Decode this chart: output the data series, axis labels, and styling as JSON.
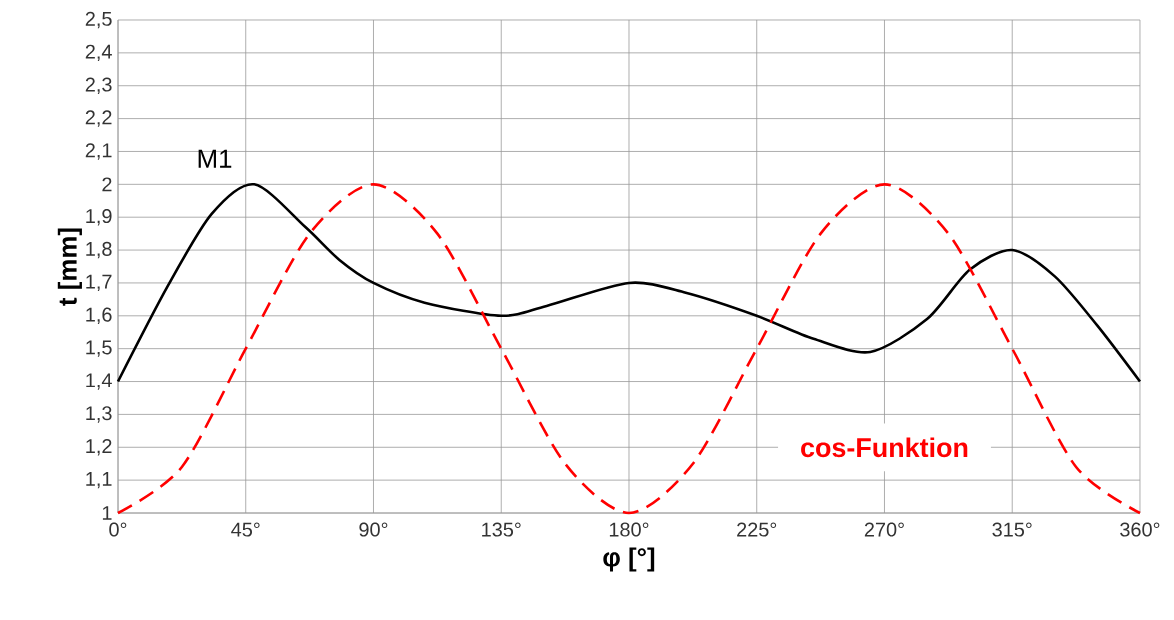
{
  "chart_data": {
    "type": "line",
    "xlabel": "φ [°]",
    "ylabel": "t [mm]",
    "xlim": [
      0,
      360
    ],
    "ylim": [
      1,
      2.5
    ],
    "xticks": [
      {
        "value": 0,
        "label": "0°"
      },
      {
        "value": 45,
        "label": "45°"
      },
      {
        "value": 90,
        "label": "90°"
      },
      {
        "value": 135,
        "label": "135°"
      },
      {
        "value": 180,
        "label": "180°"
      },
      {
        "value": 225,
        "label": "225°"
      },
      {
        "value": 270,
        "label": "270°"
      },
      {
        "value": 315,
        "label": "315°"
      },
      {
        "value": 360,
        "label": "360°"
      }
    ],
    "yticks": [
      1,
      {
        "value": 1.1,
        "label": "1,1"
      },
      {
        "value": 1.2,
        "label": "1,2"
      },
      {
        "value": 1.3,
        "label": "1,3"
      },
      {
        "value": 1.4,
        "label": "1,4"
      },
      {
        "value": 1.5,
        "label": "1,5"
      },
      {
        "value": 1.6,
        "label": "1,6"
      },
      {
        "value": 1.7,
        "label": "1,7"
      },
      {
        "value": 1.8,
        "label": "1,8"
      },
      {
        "value": 1.9,
        "label": "1,9"
      },
      2,
      {
        "value": 2.1,
        "label": "2,1"
      },
      {
        "value": 2.2,
        "label": "2,2"
      },
      {
        "value": 2.3,
        "label": "2,3"
      },
      {
        "value": 2.4,
        "label": "2,4"
      },
      {
        "value": 2.5,
        "label": "2,5"
      }
    ],
    "grid": true,
    "series": [
      {
        "name": "M1",
        "color": "#000000",
        "line_style": "solid",
        "x": [
          0,
          17.5,
          33,
          48,
          66,
          78,
          90,
          108,
          135,
          151,
          180,
          200,
          225,
          245,
          265,
          285,
          300,
          315,
          330,
          345,
          360
        ],
        "values": [
          1.4,
          1.69,
          1.91,
          2.0,
          1.87,
          1.77,
          1.7,
          1.64,
          1.6,
          1.63,
          1.7,
          1.67,
          1.6,
          1.53,
          1.49,
          1.59,
          1.74,
          1.8,
          1.72,
          1.57,
          1.4
        ]
      },
      {
        "name": "cos-Funktion",
        "color": "#ff0000",
        "line_style": "dashed",
        "x": [
          0,
          22.5,
          45,
          67.5,
          90,
          112.5,
          135,
          157.5,
          180,
          202.5,
          225,
          247.5,
          270,
          292.5,
          315,
          337.5,
          360
        ],
        "values": [
          1.0,
          1.14,
          1.5,
          1.85,
          2.0,
          1.85,
          1.5,
          1.15,
          1.0,
          1.15,
          1.5,
          1.85,
          2.0,
          1.85,
          1.5,
          1.14,
          1.0
        ]
      }
    ]
  }
}
